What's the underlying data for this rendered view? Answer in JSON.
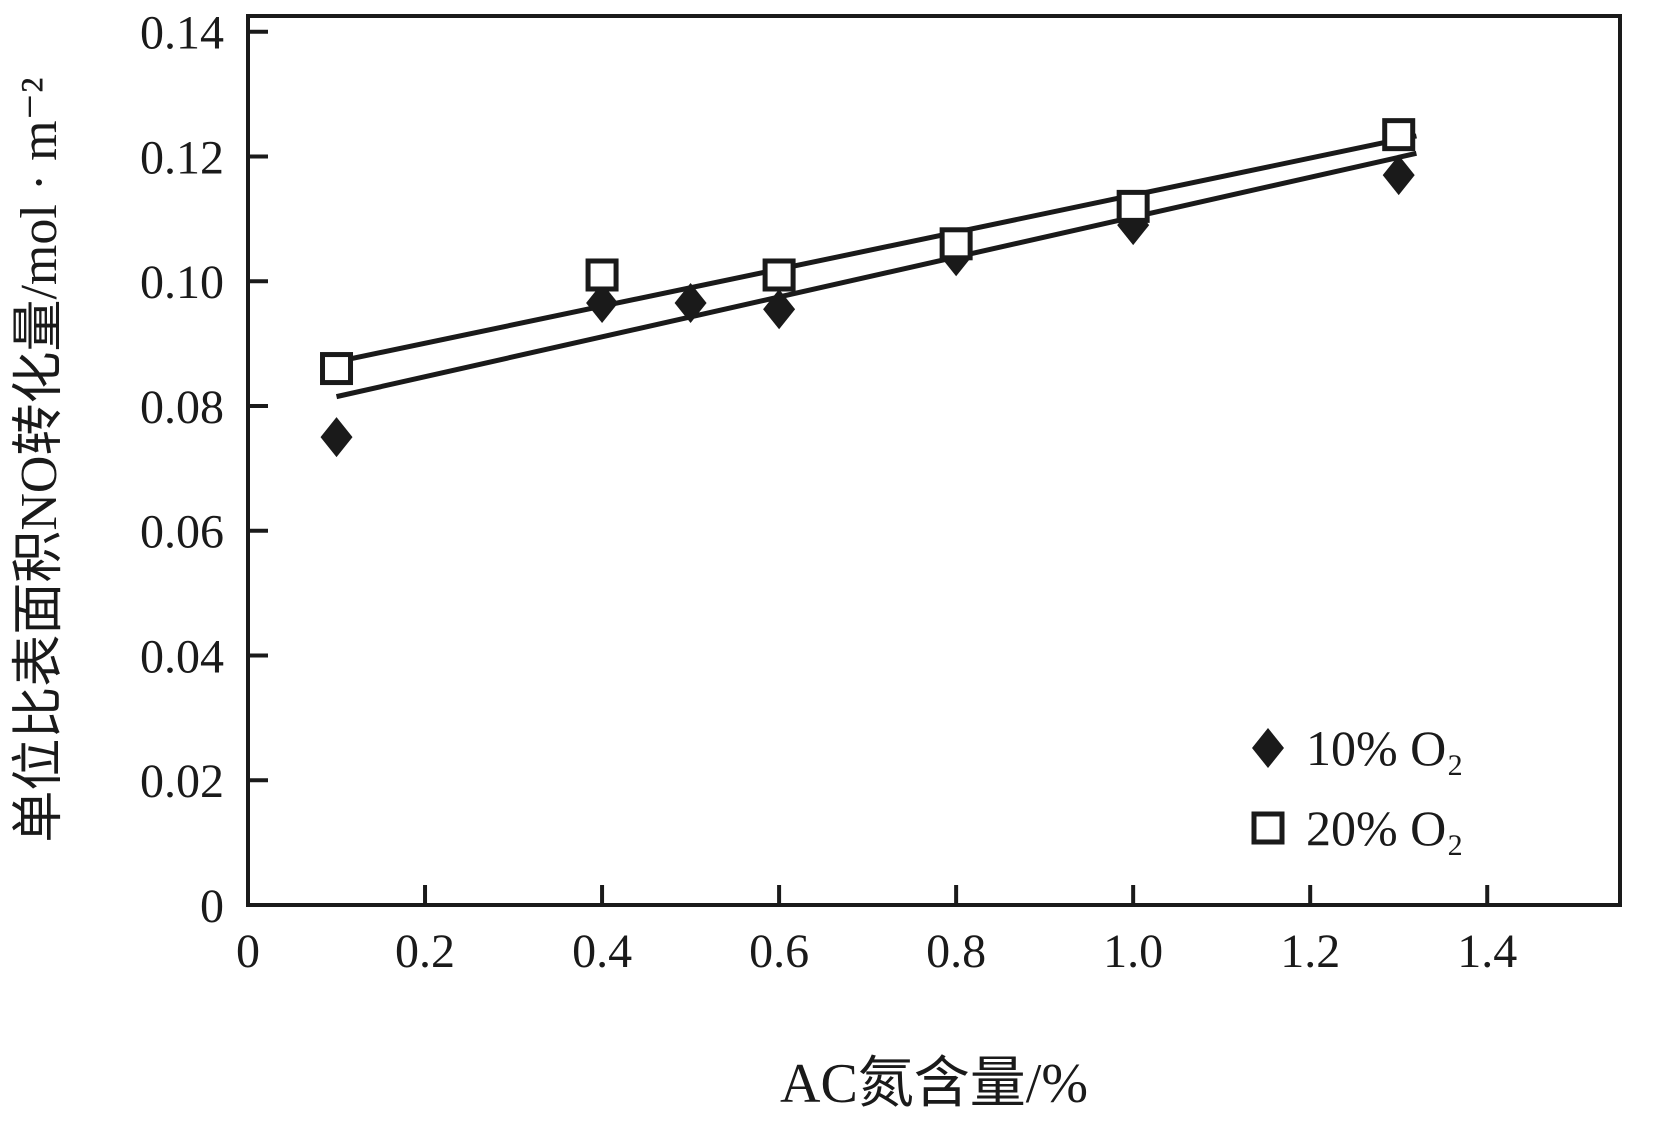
{
  "figure": {
    "background": "#ffffff",
    "ink_color": "#1a1a1a"
  },
  "chart_data": {
    "type": "scatter",
    "title": "",
    "xlabel": "AC氮含量/%",
    "ylabel": "单位比表面积NO转化量/mol · m⁻²",
    "xlim": [
      0,
      1.5
    ],
    "ylim": [
      0,
      0.14
    ],
    "x_tick_labels": [
      "0",
      "0.2",
      "0.4",
      "0.6",
      "0.8",
      "1.0",
      "1.2",
      "1.4"
    ],
    "y_tick_labels": [
      "0",
      "0.02",
      "0.04",
      "0.06",
      "0.08",
      "0.10",
      "0.12",
      "0.14"
    ],
    "grid": false,
    "legend_position": "inside-bottom-right",
    "series": [
      {
        "name": "10% O₂",
        "marker": "filled-diamond",
        "color": "#1a1a1a",
        "points": [
          [
            0.1,
            0.075
          ],
          [
            0.4,
            0.0965
          ],
          [
            0.5,
            0.0965
          ],
          [
            0.6,
            0.0955
          ],
          [
            0.8,
            0.104
          ],
          [
            1.0,
            0.109
          ],
          [
            1.3,
            0.117
          ]
        ],
        "fit_line": {
          "x1": 0.1,
          "y1": 0.0815,
          "x2": 1.32,
          "y2": 0.1205
        }
      },
      {
        "name": "20% O₂",
        "marker": "open-square",
        "color": "#1a1a1a",
        "points": [
          [
            0.1,
            0.086
          ],
          [
            0.4,
            0.101
          ],
          [
            0.6,
            0.101
          ],
          [
            0.8,
            0.106
          ],
          [
            1.0,
            0.112
          ],
          [
            1.3,
            0.1235
          ]
        ],
        "fit_line": {
          "x1": 0.09,
          "y1": 0.0868,
          "x2": 1.32,
          "y2": 0.1233
        }
      }
    ]
  }
}
